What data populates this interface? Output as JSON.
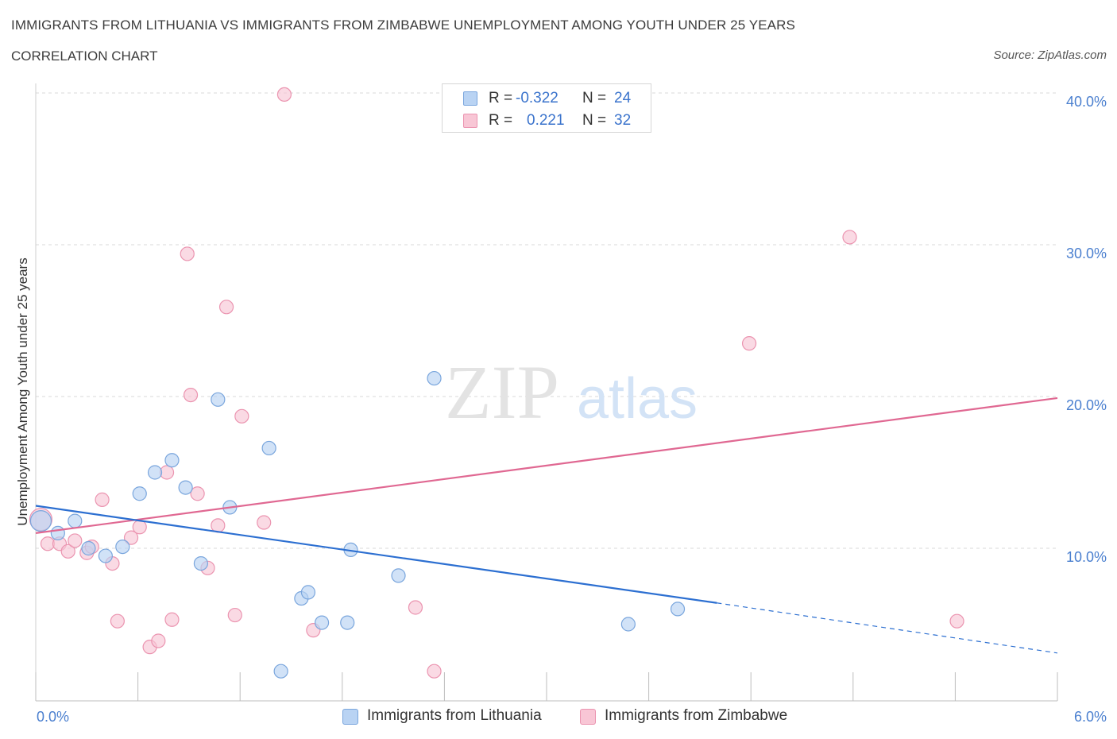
{
  "header": {
    "title": "IMMIGRANTS FROM LITHUANIA VS IMMIGRANTS FROM ZIMBABWE UNEMPLOYMENT AMONG YOUTH UNDER 25 YEARS",
    "subtitle": "CORRELATION CHART",
    "source": "Source: ZipAtlas.com"
  },
  "watermark": {
    "zip": "ZIP",
    "atlas": "atlas"
  },
  "legend": {
    "r_label": "R =",
    "n_label": "N =",
    "lithuania": {
      "r": "-0.322",
      "n": "24"
    },
    "zimbabwe": {
      "r": "0.221",
      "n": "32"
    }
  },
  "colors": {
    "lithuania_fill": "#b9d3f3",
    "lithuania_stroke": "#7aa6dd",
    "lithuania_line": "#2c6fd1",
    "zimbabwe_fill": "#f8c6d5",
    "zimbabwe_stroke": "#eb94b0",
    "zimbabwe_line": "#e06892",
    "grid": "#d8d8d8",
    "tick_text": "#4a7fcf"
  },
  "chart_data": {
    "type": "scatter",
    "title": "IMMIGRANTS FROM LITHUANIA VS IMMIGRANTS FROM ZIMBABWE UNEMPLOYMENT AMONG YOUTH UNDER 25 YEARS",
    "xlabel": "",
    "ylabel": "Unemployment Among Youth under 25 years",
    "xlim": [
      0,
      6
    ],
    "ylim": [
      0,
      40
    ],
    "x_tick_labels": [
      "0.0%",
      "6.0%"
    ],
    "y_ticks": [
      10,
      20,
      30,
      40
    ],
    "y_tick_labels": [
      "10.0%",
      "20.0%",
      "30.0%",
      "40.0%"
    ],
    "grid": true,
    "series": [
      {
        "name": "Immigrants from Lithuania",
        "points": [
          [
            0.03,
            11.8
          ],
          [
            0.13,
            11.0
          ],
          [
            0.23,
            11.8
          ],
          [
            0.31,
            10.0
          ],
          [
            0.41,
            9.5
          ],
          [
            0.51,
            10.1
          ],
          [
            0.61,
            13.6
          ],
          [
            0.7,
            15.0
          ],
          [
            0.8,
            15.8
          ],
          [
            0.88,
            14.0
          ],
          [
            0.97,
            9.0
          ],
          [
            1.07,
            19.8
          ],
          [
            1.14,
            12.7
          ],
          [
            1.37,
            16.6
          ],
          [
            1.56,
            6.7
          ],
          [
            1.6,
            7.1
          ],
          [
            1.68,
            5.1
          ],
          [
            1.83,
            5.1
          ],
          [
            1.85,
            9.9
          ],
          [
            2.13,
            8.2
          ],
          [
            2.34,
            21.2
          ],
          [
            1.44,
            1.9
          ],
          [
            3.48,
            5.0
          ],
          [
            3.77,
            6.0
          ]
        ],
        "trend": {
          "x0": 0,
          "y0": 12.8,
          "x1": 4.0,
          "y1": 6.4,
          "dashed_to_x": 6.0,
          "dashed_to_y": 3.1
        }
      },
      {
        "name": "Immigrants from Zimbabwe",
        "points": [
          [
            0.03,
            11.9
          ],
          [
            0.07,
            10.3
          ],
          [
            0.14,
            10.3
          ],
          [
            0.19,
            9.8
          ],
          [
            0.23,
            10.5
          ],
          [
            0.3,
            9.7
          ],
          [
            0.33,
            10.1
          ],
          [
            0.39,
            13.2
          ],
          [
            0.45,
            9.0
          ],
          [
            0.48,
            5.2
          ],
          [
            0.56,
            10.7
          ],
          [
            0.61,
            11.4
          ],
          [
            0.67,
            3.5
          ],
          [
            0.72,
            3.9
          ],
          [
            0.77,
            15.0
          ],
          [
            0.8,
            5.3
          ],
          [
            0.89,
            29.4
          ],
          [
            0.91,
            20.1
          ],
          [
            0.95,
            13.6
          ],
          [
            1.01,
            8.7
          ],
          [
            1.07,
            11.5
          ],
          [
            1.12,
            25.9
          ],
          [
            1.17,
            5.6
          ],
          [
            1.21,
            18.7
          ],
          [
            1.34,
            11.7
          ],
          [
            1.46,
            39.9
          ],
          [
            1.63,
            4.6
          ],
          [
            2.23,
            6.1
          ],
          [
            2.34,
            1.9
          ],
          [
            4.19,
            23.5
          ],
          [
            4.78,
            30.5
          ],
          [
            5.41,
            5.2
          ]
        ],
        "trend": {
          "x0": 0,
          "y0": 11.0,
          "x1": 6.0,
          "y1": 19.9
        }
      }
    ]
  },
  "bottom_legend": {
    "lithuania_label": "Immigrants from Lithuania",
    "zimbabwe_label": "Immigrants from Zimbabwe"
  }
}
